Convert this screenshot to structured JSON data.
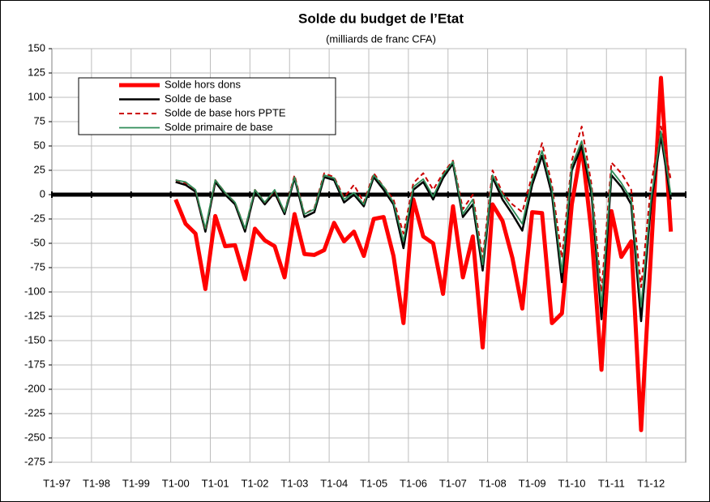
{
  "chart_data": {
    "type": "line",
    "title": "Solde du budget de l’Etat",
    "subtitle": "(milliards de franc CFA)",
    "categories": [
      "T1-97",
      null,
      null,
      null,
      "T1-98",
      null,
      null,
      null,
      "T1-99",
      null,
      null,
      null,
      "T1-00",
      null,
      null,
      null,
      "T1-01",
      null,
      null,
      null,
      "T1-02",
      null,
      null,
      null,
      "T1-03",
      null,
      null,
      null,
      "T1-04",
      null,
      null,
      null,
      "T1-05",
      null,
      null,
      null,
      "T1-06",
      null,
      null,
      null,
      "T1-07",
      null,
      null,
      null,
      "T1-08",
      null,
      null,
      null,
      "T1-09",
      null,
      null,
      null,
      "T1-10",
      null,
      null,
      null,
      "T1-11",
      null,
      null,
      null,
      "T1-12",
      null,
      null,
      null
    ],
    "ylim": [
      -275,
      150
    ],
    "yticks": [
      -275,
      -250,
      -225,
      -200,
      -175,
      -150,
      -125,
      -100,
      -75,
      -50,
      -25,
      0,
      25,
      50,
      75,
      100,
      125,
      150
    ],
    "grid": true,
    "legend": "upper left",
    "series": [
      {
        "name": "Solde hors dons",
        "color": "#ff0000",
        "dash": false,
        "values": [
          null,
          null,
          null,
          null,
          null,
          null,
          null,
          null,
          null,
          null,
          null,
          null,
          -5,
          -30,
          -40,
          -97,
          -22,
          -53,
          -52,
          -87,
          -35,
          -47,
          -53,
          -85,
          -20,
          -61,
          -62,
          -57,
          -29,
          -48,
          -38,
          -63,
          -25,
          -23,
          -63,
          -132,
          -5,
          -43,
          -50,
          -102,
          -12,
          -85,
          -43,
          -157,
          -10,
          -27,
          -65,
          -117,
          -18,
          -19,
          -132,
          -122,
          -10,
          50,
          -40,
          -180,
          -17,
          -64,
          -48,
          -242,
          -60,
          120,
          -38,
          null
        ]
      },
      {
        "name": "Solde de base",
        "color": "#000000",
        "dash": false,
        "values": [
          null,
          null,
          null,
          null,
          null,
          null,
          null,
          null,
          null,
          null,
          null,
          null,
          13,
          10,
          3,
          -38,
          13,
          0,
          -10,
          -38,
          3,
          -10,
          2,
          -20,
          17,
          -23,
          -18,
          18,
          15,
          -8,
          0,
          -12,
          18,
          5,
          -10,
          -55,
          5,
          13,
          -5,
          17,
          32,
          -23,
          -10,
          -78,
          18,
          -5,
          -20,
          -37,
          10,
          40,
          0,
          -90,
          25,
          50,
          0,
          -128,
          20,
          8,
          -10,
          -130,
          -10,
          60,
          -5,
          null
        ]
      },
      {
        "name": "Solde de base hors PPTE",
        "color": "#cc0000",
        "dash": true,
        "values": [
          null,
          null,
          null,
          null,
          null,
          null,
          null,
          null,
          null,
          null,
          null,
          null,
          15,
          12,
          5,
          -36,
          15,
          2,
          -8,
          -35,
          5,
          -8,
          4,
          -18,
          20,
          -20,
          -14,
          22,
          18,
          -3,
          10,
          -8,
          22,
          8,
          -5,
          -40,
          12,
          22,
          5,
          22,
          35,
          -15,
          0,
          -65,
          25,
          2,
          -10,
          -18,
          20,
          53,
          10,
          -65,
          35,
          70,
          10,
          -100,
          33,
          22,
          5,
          -95,
          10,
          70,
          15,
          null
        ]
      },
      {
        "name": "Solde primaire de base",
        "color": "#2e8b57",
        "dash": false,
        "values": [
          null,
          null,
          null,
          null,
          null,
          null,
          null,
          null,
          null,
          null,
          null,
          null,
          15,
          13,
          5,
          -35,
          15,
          2,
          -8,
          -35,
          5,
          -8,
          5,
          -18,
          18,
          -20,
          -15,
          20,
          17,
          -5,
          2,
          -10,
          20,
          8,
          -8,
          -48,
          8,
          16,
          -2,
          20,
          34,
          -20,
          -5,
          -72,
          20,
          0,
          -15,
          -30,
          15,
          45,
          5,
          -80,
          30,
          55,
          5,
          -115,
          25,
          12,
          -5,
          -115,
          -5,
          65,
          0,
          null
        ]
      }
    ]
  }
}
